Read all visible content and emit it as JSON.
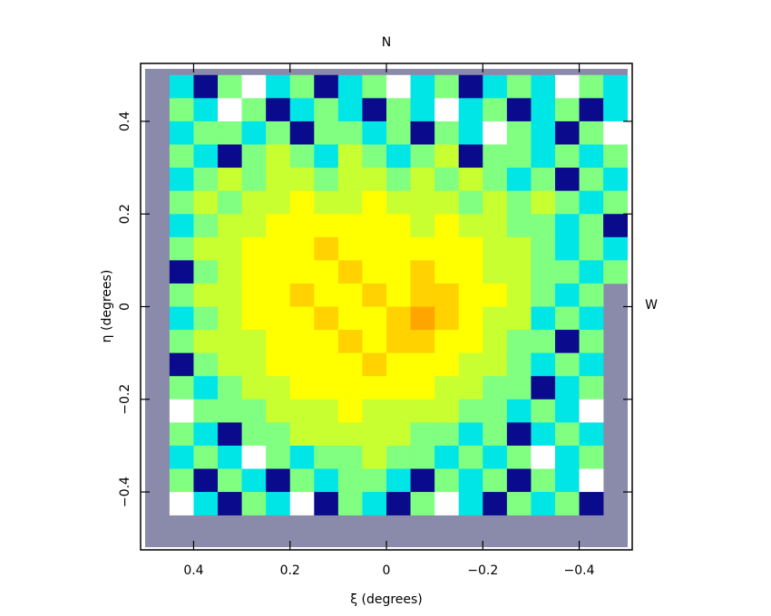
{
  "chart_data": {
    "type": "heatmap",
    "top_label": "N",
    "right_label": "W",
    "xlabel": "ξ (degrees)",
    "ylabel": "η (degrees)",
    "xlim": [
      0.51,
      -0.51
    ],
    "ylim": [
      -0.525,
      0.525
    ],
    "xticks": [
      0.4,
      0.2,
      0,
      {
        "value": -0.2,
        "label": "−0.2"
      },
      {
        "value": -0.4,
        "label": "−0.4"
      }
    ],
    "yticks": [
      {
        "value": -0.4,
        "label": "−0.4"
      },
      {
        "value": -0.2,
        "label": "−0.2"
      },
      0,
      0.2,
      0.4
    ],
    "colors": [
      "#ffffff",
      "#0a0a8c",
      "#1f8fff",
      "#00e6e6",
      "#80ff80",
      "#c8ff30",
      "#ffff00",
      "#ffd200",
      "#ffa500"
    ],
    "x": [
      0.475,
      0.425,
      0.375,
      0.325,
      0.275,
      0.225,
      0.175,
      0.125,
      0.075,
      0.025,
      -0.025,
      -0.075,
      -0.125,
      -0.175,
      -0.225,
      -0.275,
      -0.325,
      -0.375,
      -0.425,
      -0.475
    ],
    "y": [
      0.475,
      0.425,
      0.375,
      0.325,
      0.275,
      0.225,
      0.175,
      0.125,
      0.075,
      0.025,
      -0.025,
      -0.075,
      -0.125,
      -0.175,
      -0.225,
      -0.275,
      -0.325,
      -0.375,
      -0.425,
      -0.475
    ],
    "z": [
      [
        null,
        3,
        1,
        4,
        0,
        3,
        4,
        1,
        3,
        4,
        0,
        3,
        4,
        1,
        3,
        4,
        3,
        0,
        4,
        3
      ],
      [
        null,
        4,
        3,
        0,
        4,
        1,
        3,
        4,
        3,
        1,
        4,
        3,
        0,
        3,
        4,
        1,
        3,
        4,
        1,
        3
      ],
      [
        null,
        3,
        4,
        4,
        3,
        4,
        1,
        4,
        4,
        3,
        4,
        1,
        4,
        3,
        0,
        4,
        3,
        1,
        4,
        0
      ],
      [
        null,
        4,
        3,
        1,
        4,
        5,
        4,
        3,
        5,
        4,
        3,
        4,
        5,
        1,
        4,
        4,
        3,
        4,
        3,
        4
      ],
      [
        null,
        3,
        4,
        5,
        4,
        5,
        5,
        4,
        5,
        5,
        4,
        5,
        4,
        5,
        4,
        3,
        4,
        1,
        4,
        3
      ],
      [
        null,
        4,
        5,
        4,
        5,
        5,
        6,
        5,
        5,
        6,
        5,
        5,
        5,
        4,
        5,
        4,
        5,
        4,
        3,
        4
      ],
      [
        null,
        3,
        4,
        5,
        5,
        6,
        6,
        6,
        6,
        6,
        6,
        5,
        6,
        5,
        5,
        4,
        4,
        3,
        4,
        1
      ],
      [
        null,
        4,
        5,
        5,
        6,
        6,
        6,
        7,
        6,
        6,
        6,
        6,
        6,
        6,
        5,
        5,
        4,
        3,
        4,
        3
      ],
      [
        null,
        1,
        4,
        5,
        6,
        6,
        6,
        6,
        7,
        6,
        6,
        7,
        6,
        6,
        5,
        5,
        4,
        4,
        3,
        4
      ],
      [
        null,
        4,
        5,
        5,
        6,
        6,
        7,
        6,
        6,
        7,
        6,
        7,
        7,
        6,
        6,
        5,
        4,
        3,
        4,
        null
      ],
      [
        null,
        3,
        4,
        5,
        6,
        6,
        6,
        7,
        6,
        6,
        7,
        8,
        7,
        6,
        5,
        5,
        3,
        4,
        3,
        null
      ],
      [
        null,
        4,
        5,
        5,
        5,
        6,
        6,
        6,
        7,
        6,
        7,
        7,
        6,
        6,
        5,
        4,
        4,
        1,
        4,
        null
      ],
      [
        null,
        1,
        4,
        5,
        5,
        6,
        6,
        6,
        6,
        7,
        6,
        6,
        6,
        5,
        5,
        4,
        3,
        4,
        3,
        null
      ],
      [
        null,
        4,
        3,
        4,
        5,
        5,
        6,
        6,
        6,
        6,
        6,
        6,
        5,
        5,
        4,
        4,
        1,
        3,
        4,
        null
      ],
      [
        null,
        0,
        4,
        4,
        4,
        5,
        5,
        5,
        6,
        5,
        5,
        5,
        5,
        4,
        4,
        3,
        4,
        3,
        0,
        null
      ],
      [
        null,
        4,
        3,
        1,
        4,
        4,
        5,
        5,
        5,
        5,
        5,
        4,
        4,
        3,
        4,
        1,
        3,
        4,
        3,
        null
      ],
      [
        null,
        3,
        4,
        3,
        0,
        4,
        3,
        4,
        4,
        5,
        4,
        4,
        3,
        4,
        3,
        4,
        0,
        3,
        4,
        null
      ],
      [
        null,
        4,
        1,
        4,
        3,
        1,
        4,
        3,
        4,
        4,
        3,
        1,
        4,
        3,
        4,
        1,
        4,
        3,
        0,
        null
      ],
      [
        null,
        0,
        3,
        1,
        4,
        3,
        0,
        1,
        4,
        3,
        1,
        4,
        0,
        3,
        1,
        4,
        3,
        4,
        1,
        null
      ],
      [
        null,
        null,
        null,
        null,
        null,
        null,
        null,
        null,
        null,
        null,
        null,
        null,
        null,
        null,
        null,
        null,
        null,
        null,
        null,
        null
      ]
    ]
  }
}
